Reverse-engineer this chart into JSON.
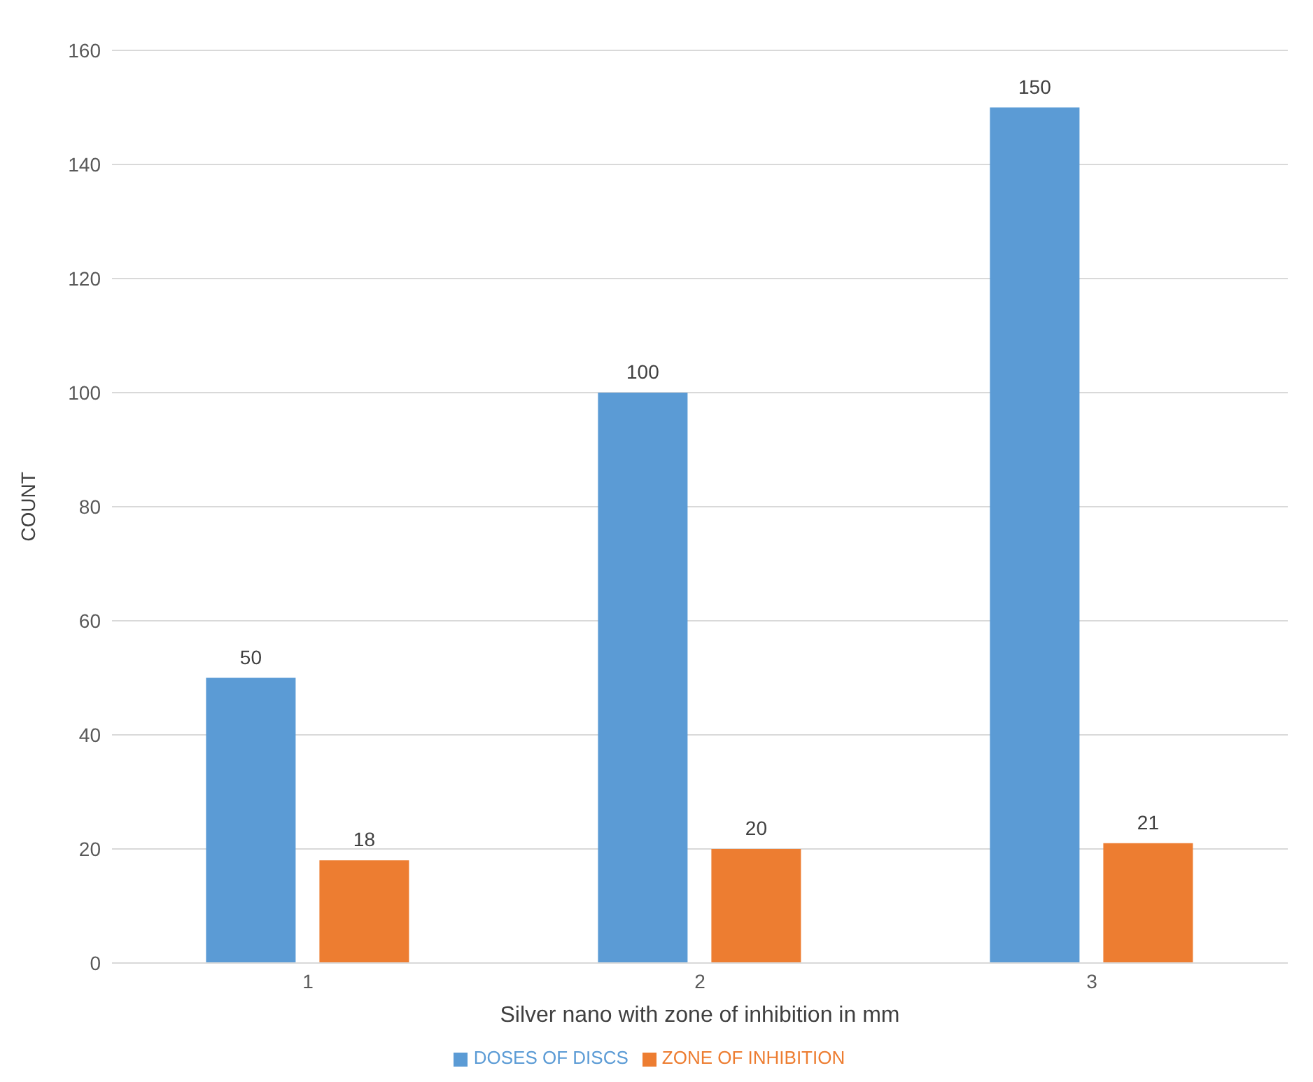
{
  "chart_data": {
    "type": "bar",
    "xlabel": "Silver nano with zone of inhibition in mm",
    "ylabel": "COUNT",
    "categories": [
      "1",
      "2",
      "3"
    ],
    "series": [
      {
        "name": "DOSES OF DISCS",
        "color": "#5b9bd5",
        "values": [
          50,
          100,
          150
        ]
      },
      {
        "name": "ZONE OF INHIBITION",
        "color": "#ed7d31",
        "values": [
          18,
          20,
          21
        ]
      }
    ],
    "ylim": [
      0,
      160
    ],
    "yticks": [
      0,
      20,
      40,
      60,
      80,
      100,
      120,
      140,
      160
    ],
    "grid": "y",
    "legend": "bottom",
    "data_labels": true
  }
}
